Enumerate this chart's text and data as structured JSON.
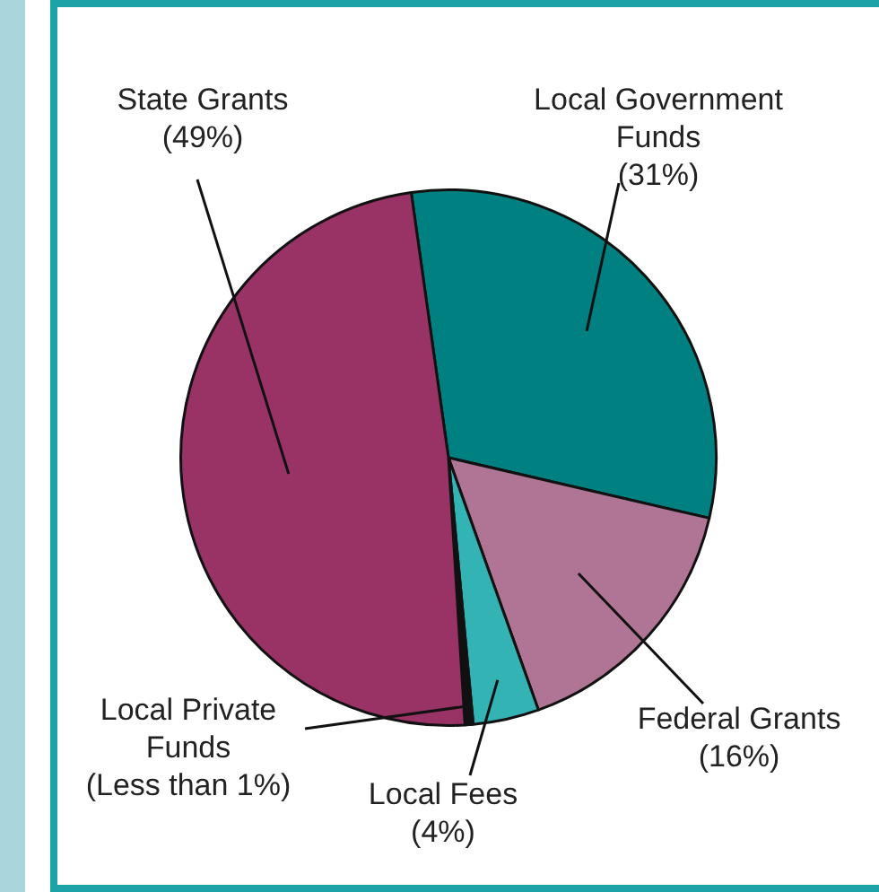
{
  "chart_data": {
    "type": "pie",
    "categories": [
      "Local Government Funds",
      "Federal Grants",
      "Local Fees",
      "Local Private Funds",
      "State Grants"
    ],
    "values": [
      31,
      16,
      4,
      0.5,
      49
    ],
    "value_labels": [
      "(31%)",
      "(16%)",
      "(4%)",
      "(Less than 1%)",
      "(49%)"
    ],
    "colors": [
      "#008080",
      "#b07595",
      "#33b3b3",
      "#111111",
      "#993366"
    ],
    "legend": false
  }
}
